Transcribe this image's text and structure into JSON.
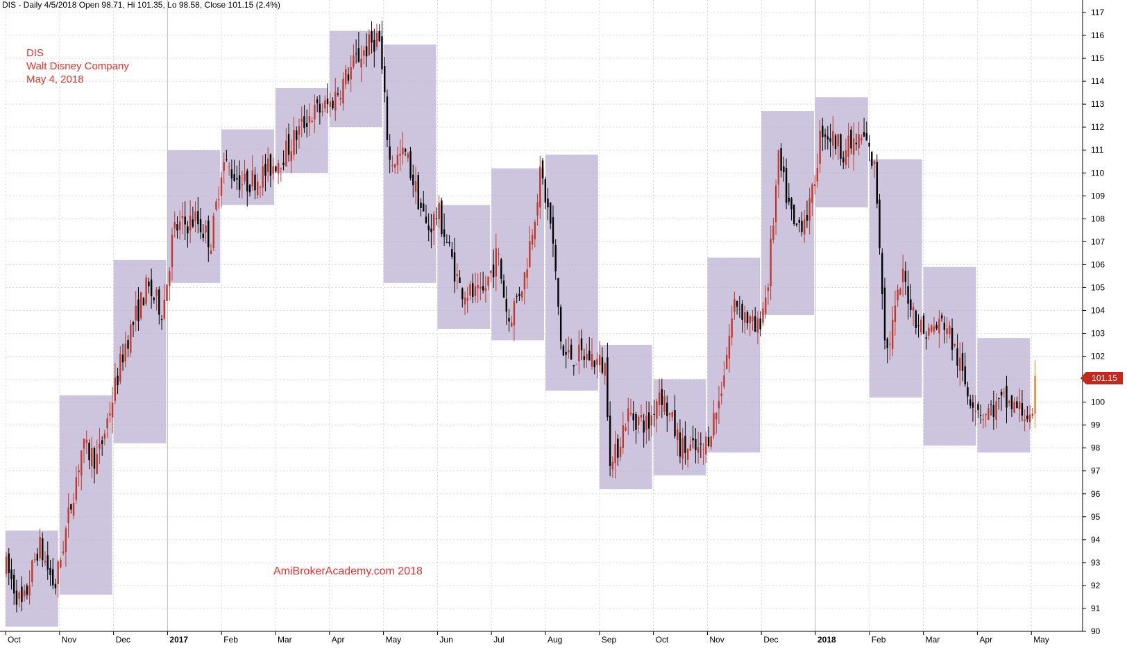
{
  "header": {
    "text": "DIS - Daily 4/5/2018 Open 98.71, Hi 101.35, Lo 98.58, Close 101.15 (2.4%)"
  },
  "info": {
    "symbol": "DIS",
    "company": "Walt Disney Company",
    "date": "May 4, 2018"
  },
  "watermark": "AmiBrokerAcademy.com  2018",
  "last_price_label": "101.15",
  "colors": {
    "up_candle": "#c0392b",
    "down_candle": "#000000",
    "monthly_box": "#b9aed0",
    "label_red": "#e8322c",
    "last_close_candle": "#e67e22"
  },
  "chart_data": {
    "type": "candlestick",
    "y_range": [
      90,
      117
    ],
    "y_ticks": [
      90,
      91,
      92,
      93,
      94,
      95,
      96,
      97,
      98,
      99,
      100,
      101,
      102,
      103,
      104,
      105,
      106,
      107,
      108,
      109,
      110,
      111,
      112,
      113,
      114,
      115,
      116,
      117
    ],
    "grid": true,
    "y_axis_side": "right",
    "months": [
      {
        "label": "Oct",
        "bold": false,
        "box_high": 94.4,
        "box_low": 90.2
      },
      {
        "label": "Nov",
        "bold": false,
        "box_high": 100.3,
        "box_low": 91.6
      },
      {
        "label": "Dec",
        "bold": false,
        "box_high": 106.2,
        "box_low": 98.2
      },
      {
        "label": "2017",
        "bold": true,
        "box_high": 111.0,
        "box_low": 105.2
      },
      {
        "label": "Feb",
        "bold": false,
        "box_high": 111.9,
        "box_low": 108.6
      },
      {
        "label": "Mar",
        "bold": false,
        "box_high": 113.7,
        "box_low": 110.0
      },
      {
        "label": "Apr",
        "bold": false,
        "box_high": 116.2,
        "box_low": 112.0
      },
      {
        "label": "May",
        "bold": false,
        "box_high": 115.6,
        "box_low": 105.2
      },
      {
        "label": "Jun",
        "bold": false,
        "box_high": 108.6,
        "box_low": 103.2
      },
      {
        "label": "Jul",
        "bold": false,
        "box_high": 110.2,
        "box_low": 102.7
      },
      {
        "label": "Aug",
        "bold": false,
        "box_high": 110.8,
        "box_low": 100.5
      },
      {
        "label": "Sep",
        "bold": false,
        "box_high": 102.5,
        "box_low": 96.2
      },
      {
        "label": "Oct",
        "bold": false,
        "box_high": 101.0,
        "box_low": 96.8
      },
      {
        "label": "Nov",
        "bold": false,
        "box_high": 106.3,
        "box_low": 97.8
      },
      {
        "label": "Dec",
        "bold": false,
        "box_high": 112.7,
        "box_low": 103.8
      },
      {
        "label": "2018",
        "bold": true,
        "box_high": 113.3,
        "box_low": 108.5
      },
      {
        "label": "Feb",
        "bold": false,
        "box_high": 110.6,
        "box_low": 100.2
      },
      {
        "label": "Mar",
        "bold": false,
        "box_high": 105.9,
        "box_low": 98.1
      },
      {
        "label": "Apr",
        "bold": false,
        "box_high": 102.8,
        "box_low": 97.8
      },
      {
        "label": "May",
        "bold": false,
        "box_high": null,
        "box_low": null
      }
    ],
    "trend_waypoints": [
      [
        0,
        92.8
      ],
      [
        0.3,
        91.0
      ],
      [
        0.6,
        93.8
      ],
      [
        0.9,
        91.9
      ],
      [
        1.4,
        98.0
      ],
      [
        1.7,
        97.5
      ],
      [
        2.2,
        102.5
      ],
      [
        2.6,
        105.0
      ],
      [
        2.9,
        104.0
      ],
      [
        3.1,
        107.5
      ],
      [
        3.5,
        108.0
      ],
      [
        3.8,
        107.0
      ],
      [
        4.0,
        110.5
      ],
      [
        4.4,
        109.5
      ],
      [
        4.8,
        110.0
      ],
      [
        5.2,
        111.0
      ],
      [
        5.6,
        112.5
      ],
      [
        6.0,
        113.0
      ],
      [
        6.5,
        115.0
      ],
      [
        6.9,
        116.0
      ],
      [
        7.1,
        110.5
      ],
      [
        7.4,
        110.8
      ],
      [
        7.8,
        107.5
      ],
      [
        8.0,
        108.3
      ],
      [
        8.4,
        105.0
      ],
      [
        8.8,
        104.5
      ],
      [
        9.1,
        106.5
      ],
      [
        9.3,
        103.5
      ],
      [
        9.6,
        105.5
      ],
      [
        9.9,
        110.0
      ],
      [
        10.1,
        107.5
      ],
      [
        10.3,
        102.0
      ],
      [
        10.8,
        102.0
      ],
      [
        11.1,
        101.5
      ],
      [
        11.2,
        97.0
      ],
      [
        11.5,
        99.5
      ],
      [
        11.9,
        99.0
      ],
      [
        12.1,
        100.6
      ],
      [
        12.5,
        98.0
      ],
      [
        12.9,
        97.8
      ],
      [
        13.2,
        100.0
      ],
      [
        13.5,
        104.5
      ],
      [
        13.9,
        103.0
      ],
      [
        14.1,
        105.0
      ],
      [
        14.3,
        110.5
      ],
      [
        14.6,
        107.5
      ],
      [
        14.9,
        108.5
      ],
      [
        15.1,
        112.0
      ],
      [
        15.5,
        111.0
      ],
      [
        15.9,
        111.5
      ],
      [
        16.1,
        110.0
      ],
      [
        16.3,
        102.0
      ],
      [
        16.6,
        105.5
      ],
      [
        16.8,
        104.0
      ],
      [
        17.0,
        103.0
      ],
      [
        17.4,
        103.5
      ],
      [
        17.8,
        100.5
      ],
      [
        18.1,
        99.5
      ],
      [
        18.5,
        100.0
      ],
      [
        18.9,
        99.5
      ],
      [
        19.0,
        98.8
      ],
      [
        19.1,
        101.15
      ]
    ],
    "last_close": 101.15
  }
}
